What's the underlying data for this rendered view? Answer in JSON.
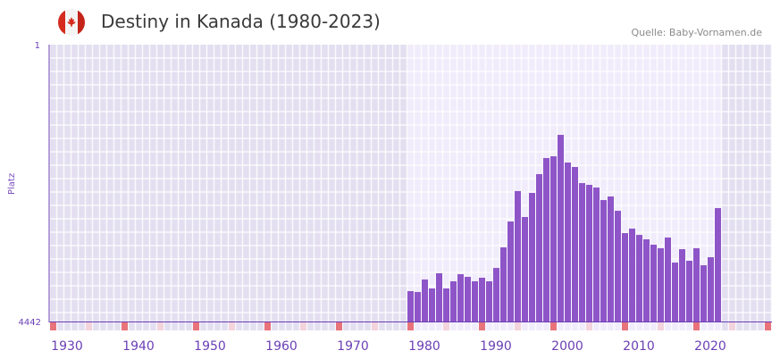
{
  "title": "Destiny in Kanada (1980-2023)",
  "source": "Quelle: Baby-Vornamen.de",
  "colors": {
    "bar": "#8e55c8",
    "axis": "#6b3fb5",
    "bg_out": "#e3dff0",
    "bg_in": "#f1ecfb",
    "marker_decade": "#e8737a",
    "marker_half": "#f3d3dc"
  },
  "chart_data": {
    "type": "bar",
    "title": "Destiny in Kanada (1980-2023)",
    "xlabel": "",
    "ylabel": "Platz",
    "ylim": [
      4442,
      1
    ],
    "y_ticks": [
      "1",
      "4442"
    ],
    "xlim": [
      1928,
      2028
    ],
    "x_ticks": [
      "1930",
      "1940",
      "1950",
      "1960",
      "1970",
      "1980",
      "1990",
      "2000",
      "2010",
      "2020"
    ],
    "x_tick_values": [
      1930,
      1940,
      1950,
      1960,
      1970,
      1980,
      1990,
      2000,
      2010,
      2020
    ],
    "x": [
      1978,
      1979,
      1980,
      1981,
      1982,
      1983,
      1984,
      1985,
      1986,
      1987,
      1988,
      1989,
      1990,
      1991,
      1992,
      1993,
      1994,
      1995,
      1996,
      1997,
      1998,
      1999,
      2000,
      2001,
      2002,
      2003,
      2004,
      2005,
      2006,
      2007,
      2008,
      2009,
      2010,
      2011,
      2012,
      2013,
      2014,
      2015,
      2016,
      2017,
      2018,
      2019,
      2020,
      2021
    ],
    "values": [
      3955,
      3969,
      3768,
      3912,
      3668,
      3912,
      3797,
      3683,
      3726,
      3797,
      3740,
      3797,
      3583,
      3253,
      2838,
      2350,
      2766,
      2379,
      2078,
      1820,
      1792,
      1448,
      1892,
      1964,
      2222,
      2250,
      2293,
      2494,
      2436,
      2666,
      3024,
      2952,
      3053,
      3124,
      3210,
      3267,
      3095,
      3497,
      3282,
      3468,
      3267,
      3540,
      3411,
      2623
    ],
    "grid": true
  }
}
